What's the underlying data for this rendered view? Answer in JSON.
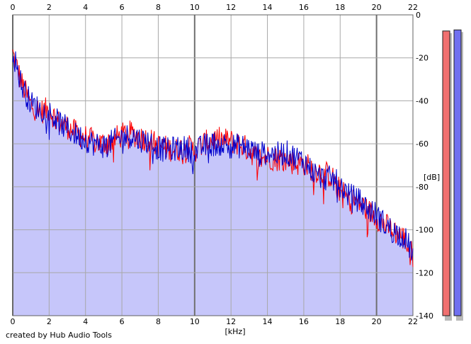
{
  "chart_data": {
    "type": "area",
    "xlabel": "[kHz]",
    "ylabel": "[dB]",
    "xlim": [
      0,
      22
    ],
    "ylim": [
      -140,
      0
    ],
    "x_ticks": [
      "0",
      "2",
      "4",
      "6",
      "8",
      "10",
      "12",
      "14",
      "16",
      "18",
      "20",
      "22"
    ],
    "y_ticks": [
      "0",
      "-20",
      "-40",
      "-60",
      "-80",
      "-100",
      "-120",
      "-140"
    ],
    "grid": true,
    "series": [
      {
        "color": "#ff0000",
        "x": [
          0,
          0.5,
          1,
          1.5,
          2,
          2.5,
          3,
          3.5,
          4,
          4.5,
          5,
          5.5,
          6,
          6.5,
          7,
          7.5,
          8,
          8.5,
          9,
          9.5,
          10,
          10.5,
          11,
          11.5,
          12,
          12.5,
          13,
          13.5,
          14,
          14.5,
          15,
          15.5,
          16,
          16.5,
          17,
          17.5,
          18,
          18.5,
          19,
          19.5,
          20,
          20.5,
          21,
          21.5,
          22
        ],
        "y": [
          -18,
          -32,
          -42,
          -45,
          -44,
          -50,
          -52,
          -55,
          -57,
          -59,
          -60,
          -58,
          -56,
          -55,
          -57,
          -58,
          -61,
          -62,
          -63,
          -61,
          -63,
          -60,
          -58,
          -58,
          -59,
          -60,
          -63,
          -67,
          -66,
          -67,
          -67,
          -69,
          -69,
          -72,
          -73,
          -75,
          -82,
          -86,
          -87,
          -91,
          -94,
          -98,
          -101,
          -104,
          -112
        ]
      },
      {
        "color": "#0000cc",
        "x": [
          0,
          0.5,
          1,
          1.5,
          2,
          2.5,
          3,
          3.5,
          4,
          4.5,
          5,
          5.5,
          6,
          6.5,
          7,
          7.5,
          8,
          8.5,
          9,
          9.5,
          10,
          10.5,
          11,
          11.5,
          12,
          12.5,
          13,
          13.5,
          14,
          14.5,
          15,
          15.5,
          16,
          16.5,
          17,
          17.5,
          18,
          18.5,
          19,
          19.5,
          20,
          20.5,
          21,
          21.5,
          22
        ],
        "y": [
          -17,
          -33,
          -41,
          -44,
          -45,
          -50,
          -53,
          -56,
          -58,
          -60,
          -61,
          -59,
          -57,
          -56,
          -58,
          -59,
          -62,
          -63,
          -62,
          -62,
          -64,
          -61,
          -60,
          -60,
          -61,
          -61,
          -62,
          -65,
          -64,
          -65,
          -64,
          -66,
          -68,
          -73,
          -76,
          -76,
          -79,
          -84,
          -86,
          -90,
          -93,
          -98,
          -101,
          -103,
          -111
        ]
      }
    ],
    "level_bars": [
      {
        "color": "#f07070",
        "value": -7.5
      },
      {
        "color": "#7070f0",
        "value": -7.0
      }
    ]
  },
  "fill_color": "#c6c6fa",
  "credit": "created by Hub Audio Tools"
}
